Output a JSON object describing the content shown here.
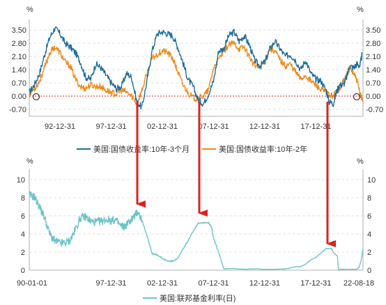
{
  "chart_data": [
    {
      "type": "line",
      "unit_left": "%",
      "unit_right": "%",
      "ylim": [
        -0.7,
        3.5
      ],
      "yticks": [
        "3.50",
        "2.80",
        "2.10",
        "1.40",
        "0.70",
        "0.00",
        "-0.70"
      ],
      "xticks": [
        "92-12-31",
        "97-12-31",
        "02-12-31",
        "07-12-31",
        "12-12-31",
        "17-12-31"
      ],
      "x_range": [
        1990.0,
        2022.6
      ],
      "reference_line": 0,
      "series": [
        {
          "name": "美国:国债收益率:10年-3个月",
          "color": "#1f6e9c",
          "points": [
            [
              1990.0,
              0.2
            ],
            [
              1990.5,
              0.6
            ],
            [
              1991.0,
              1.2
            ],
            [
              1991.5,
              2.2
            ],
            [
              1992.0,
              3.1
            ],
            [
              1992.5,
              3.6
            ],
            [
              1993.0,
              3.3
            ],
            [
              1993.5,
              2.8
            ],
            [
              1994.0,
              2.6
            ],
            [
              1994.5,
              2.3
            ],
            [
              1995.0,
              1.8
            ],
            [
              1995.5,
              1.0
            ],
            [
              1996.0,
              0.9
            ],
            [
              1996.5,
              1.7
            ],
            [
              1997.0,
              1.5
            ],
            [
              1997.5,
              1.1
            ],
            [
              1998.0,
              0.7
            ],
            [
              1998.5,
              0.4
            ],
            [
              1999.0,
              0.5
            ],
            [
              1999.5,
              1.2
            ],
            [
              2000.0,
              1.0
            ],
            [
              2000.5,
              -0.3
            ],
            [
              2001.0,
              -0.6
            ],
            [
              2001.5,
              0.8
            ],
            [
              2002.0,
              2.4
            ],
            [
              2002.5,
              3.3
            ],
            [
              2003.0,
              3.4
            ],
            [
              2003.5,
              3.3
            ],
            [
              2004.0,
              3.2
            ],
            [
              2004.5,
              2.6
            ],
            [
              2005.0,
              1.8
            ],
            [
              2005.5,
              0.9
            ],
            [
              2006.0,
              0.5
            ],
            [
              2006.5,
              -0.2
            ],
            [
              2007.0,
              -0.4
            ],
            [
              2007.5,
              0.1
            ],
            [
              2008.0,
              0.8
            ],
            [
              2008.5,
              2.4
            ],
            [
              2009.0,
              2.5
            ],
            [
              2009.5,
              3.2
            ],
            [
              2010.0,
              3.4
            ],
            [
              2010.5,
              2.9
            ],
            [
              2011.0,
              3.2
            ],
            [
              2011.5,
              2.7
            ],
            [
              2012.0,
              1.9
            ],
            [
              2012.5,
              1.6
            ],
            [
              2013.0,
              1.8
            ],
            [
              2013.5,
              2.5
            ],
            [
              2014.0,
              2.9
            ],
            [
              2014.5,
              2.5
            ],
            [
              2015.0,
              2.1
            ],
            [
              2015.5,
              2.2
            ],
            [
              2016.0,
              1.9
            ],
            [
              2016.5,
              1.4
            ],
            [
              2017.0,
              1.9
            ],
            [
              2017.5,
              1.2
            ],
            [
              2018.0,
              0.9
            ],
            [
              2018.5,
              0.8
            ],
            [
              2019.0,
              0.3
            ],
            [
              2019.3,
              -0.3
            ],
            [
              2019.7,
              -0.4
            ],
            [
              2020.0,
              0.2
            ],
            [
              2020.3,
              0.6
            ],
            [
              2020.7,
              0.6
            ],
            [
              2021.0,
              1.0
            ],
            [
              2021.3,
              1.6
            ],
            [
              2021.7,
              1.5
            ],
            [
              2022.0,
              1.7
            ],
            [
              2022.3,
              1.6
            ],
            [
              2022.5,
              2.2
            ]
          ]
        },
        {
          "name": "美国:国债收益率:10年-2年",
          "color": "#f0891a",
          "points": [
            [
              1990.0,
              0.1
            ],
            [
              1990.5,
              0.4
            ],
            [
              1991.0,
              0.8
            ],
            [
              1991.5,
              1.5
            ],
            [
              1992.0,
              2.3
            ],
            [
              1992.5,
              2.6
            ],
            [
              1993.0,
              2.3
            ],
            [
              1993.5,
              1.8
            ],
            [
              1994.0,
              1.6
            ],
            [
              1994.5,
              0.9
            ],
            [
              1995.0,
              0.5
            ],
            [
              1995.5,
              0.4
            ],
            [
              1996.0,
              0.6
            ],
            [
              1996.5,
              0.5
            ],
            [
              1997.0,
              0.5
            ],
            [
              1997.5,
              0.3
            ],
            [
              1998.0,
              0.2
            ],
            [
              1998.5,
              0.1
            ],
            [
              1999.0,
              0.3
            ],
            [
              1999.5,
              0.2
            ],
            [
              2000.0,
              0.0
            ],
            [
              2000.5,
              -0.4
            ],
            [
              2001.0,
              0.3
            ],
            [
              2001.5,
              1.2
            ],
            [
              2002.0,
              2.0
            ],
            [
              2002.5,
              2.2
            ],
            [
              2003.0,
              2.4
            ],
            [
              2003.5,
              2.3
            ],
            [
              2004.0,
              2.0
            ],
            [
              2004.5,
              1.3
            ],
            [
              2005.0,
              0.6
            ],
            [
              2005.5,
              0.2
            ],
            [
              2006.0,
              -0.1
            ],
            [
              2006.5,
              -0.1
            ],
            [
              2007.0,
              0.0
            ],
            [
              2007.5,
              0.3
            ],
            [
              2008.0,
              1.5
            ],
            [
              2008.5,
              1.9
            ],
            [
              2009.0,
              2.4
            ],
            [
              2009.5,
              2.7
            ],
            [
              2010.0,
              2.8
            ],
            [
              2010.5,
              2.5
            ],
            [
              2011.0,
              2.6
            ],
            [
              2011.5,
              2.1
            ],
            [
              2012.0,
              1.6
            ],
            [
              2012.5,
              1.5
            ],
            [
              2013.0,
              1.8
            ],
            [
              2013.5,
              2.5
            ],
            [
              2014.0,
              2.4
            ],
            [
              2014.5,
              1.9
            ],
            [
              2015.0,
              1.6
            ],
            [
              2015.5,
              1.7
            ],
            [
              2016.0,
              1.3
            ],
            [
              2016.5,
              0.9
            ],
            [
              2017.0,
              1.1
            ],
            [
              2017.5,
              0.8
            ],
            [
              2018.0,
              0.6
            ],
            [
              2018.5,
              0.3
            ],
            [
              2019.0,
              0.2
            ],
            [
              2019.5,
              0.0
            ],
            [
              2020.0,
              0.2
            ],
            [
              2020.5,
              0.6
            ],
            [
              2021.0,
              1.1
            ],
            [
              2021.3,
              1.5
            ],
            [
              2021.7,
              1.2
            ],
            [
              2022.0,
              0.8
            ],
            [
              2022.3,
              0.2
            ],
            [
              2022.6,
              -0.3
            ]
          ]
        }
      ]
    },
    {
      "type": "line",
      "unit_left": "%",
      "unit_right": "%",
      "ylim": [
        0,
        10
      ],
      "yticks": [
        "10",
        "8",
        "6",
        "4",
        "2",
        "0"
      ],
      "xticks": [
        "90-01-01",
        "97-12-31",
        "02-12-31",
        "07-12-31",
        "12-12-31",
        "17-12-31",
        "22-08-18"
      ],
      "x_range": [
        1990.0,
        2022.6
      ],
      "series": [
        {
          "name": "美国:联邦基金利率(日)",
          "color": "#6cc4c8",
          "points": [
            [
              1990.0,
              8.3
            ],
            [
              1990.5,
              8.1
            ],
            [
              1991.0,
              7.0
            ],
            [
              1991.5,
              5.8
            ],
            [
              1992.0,
              4.0
            ],
            [
              1992.5,
              3.2
            ],
            [
              1993.0,
              3.0
            ],
            [
              1993.5,
              3.0
            ],
            [
              1994.0,
              3.3
            ],
            [
              1994.5,
              4.5
            ],
            [
              1995.0,
              5.8
            ],
            [
              1995.5,
              5.9
            ],
            [
              1996.0,
              5.4
            ],
            [
              1996.5,
              5.3
            ],
            [
              1997.0,
              5.4
            ],
            [
              1997.5,
              5.6
            ],
            [
              1998.0,
              5.5
            ],
            [
              1998.5,
              5.5
            ],
            [
              1998.9,
              4.9
            ],
            [
              1999.3,
              4.8
            ],
            [
              1999.8,
              5.4
            ],
            [
              2000.3,
              6.0
            ],
            [
              2000.6,
              6.5
            ],
            [
              2001.0,
              5.5
            ],
            [
              2001.3,
              4.5
            ],
            [
              2001.6,
              3.5
            ],
            [
              2002.0,
              1.8
            ],
            [
              2002.5,
              1.7
            ],
            [
              2003.0,
              1.3
            ],
            [
              2003.5,
              1.0
            ],
            [
              2004.0,
              1.0
            ],
            [
              2004.5,
              1.3
            ],
            [
              2005.0,
              2.3
            ],
            [
              2005.5,
              3.2
            ],
            [
              2006.0,
              4.3
            ],
            [
              2006.5,
              5.2
            ],
            [
              2007.0,
              5.25
            ],
            [
              2007.5,
              5.25
            ],
            [
              2007.8,
              4.8
            ],
            [
              2008.0,
              3.5
            ],
            [
              2008.5,
              2.0
            ],
            [
              2008.9,
              0.5
            ],
            [
              2009.0,
              0.15
            ],
            [
              2010.0,
              0.18
            ],
            [
              2011.0,
              0.1
            ],
            [
              2012.0,
              0.15
            ],
            [
              2013.0,
              0.1
            ],
            [
              2014.0,
              0.1
            ],
            [
              2015.0,
              0.13
            ],
            [
              2015.9,
              0.35
            ],
            [
              2016.5,
              0.4
            ],
            [
              2017.0,
              0.65
            ],
            [
              2017.5,
              1.15
            ],
            [
              2018.0,
              1.4
            ],
            [
              2018.5,
              1.9
            ],
            [
              2019.0,
              2.4
            ],
            [
              2019.5,
              2.4
            ],
            [
              2019.8,
              1.8
            ],
            [
              2020.1,
              1.6
            ],
            [
              2020.2,
              0.1
            ],
            [
              2021.0,
              0.1
            ],
            [
              2022.0,
              0.1
            ],
            [
              2022.2,
              0.3
            ],
            [
              2022.4,
              1.0
            ],
            [
              2022.6,
              2.3
            ]
          ]
        }
      ]
    }
  ]
}
